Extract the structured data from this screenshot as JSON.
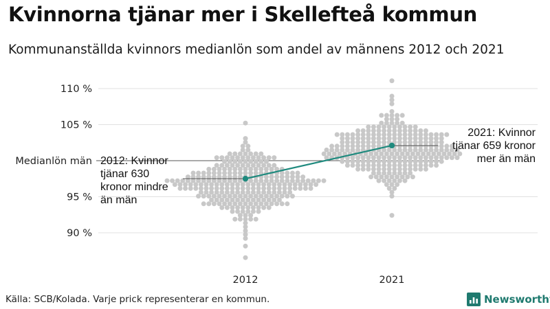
{
  "title": "Kvinnorna tjänar mer i Skellefteå kommun",
  "subtitle": "Kommunanställda kvinnors medianlön som andel av männens 2012 och 2021",
  "source": "Källa: SCB/Kolada. Varje prick representerar en kommun.",
  "brand": {
    "name": "Newsworthy",
    "color": "#1f7a6f"
  },
  "chart_data": {
    "type": "scatter",
    "style": "beeswarm",
    "categories": [
      "2012",
      "2021"
    ],
    "y_ticks": [
      {
        "value": 90,
        "label": "90 %"
      },
      {
        "value": 95,
        "label": "95 %"
      },
      {
        "value": 105,
        "label": "105 %"
      },
      {
        "value": 110,
        "label": "110 %"
      }
    ],
    "reference_line": {
      "value": 100,
      "label": "Medianlön män"
    },
    "ylim": [
      86,
      113
    ],
    "grid": true,
    "point_color": "#c8c8c8",
    "highlight_color": "#1f8a7e",
    "highlight": {
      "name": "Skellefteå kommun",
      "values": [
        97.5,
        102.1
      ],
      "annotations": [
        {
          "category": "2012",
          "lines": [
            "2012: Kvinnor",
            "tjänar 630",
            "kronor mindre",
            "än män"
          ]
        },
        {
          "category": "2021",
          "lines": [
            "2021: Kvinnor",
            "tjänar 659 kronor",
            "mer än män"
          ]
        }
      ]
    },
    "distributions": [
      {
        "category": "2012",
        "count": 290,
        "min": 86.6,
        "max": 105.3,
        "median": 96.8,
        "spread": 2.4
      },
      {
        "category": "2021",
        "count": 290,
        "min": 92.6,
        "max": 111.3,
        "median": 101.5,
        "spread": 2.4
      }
    ]
  }
}
